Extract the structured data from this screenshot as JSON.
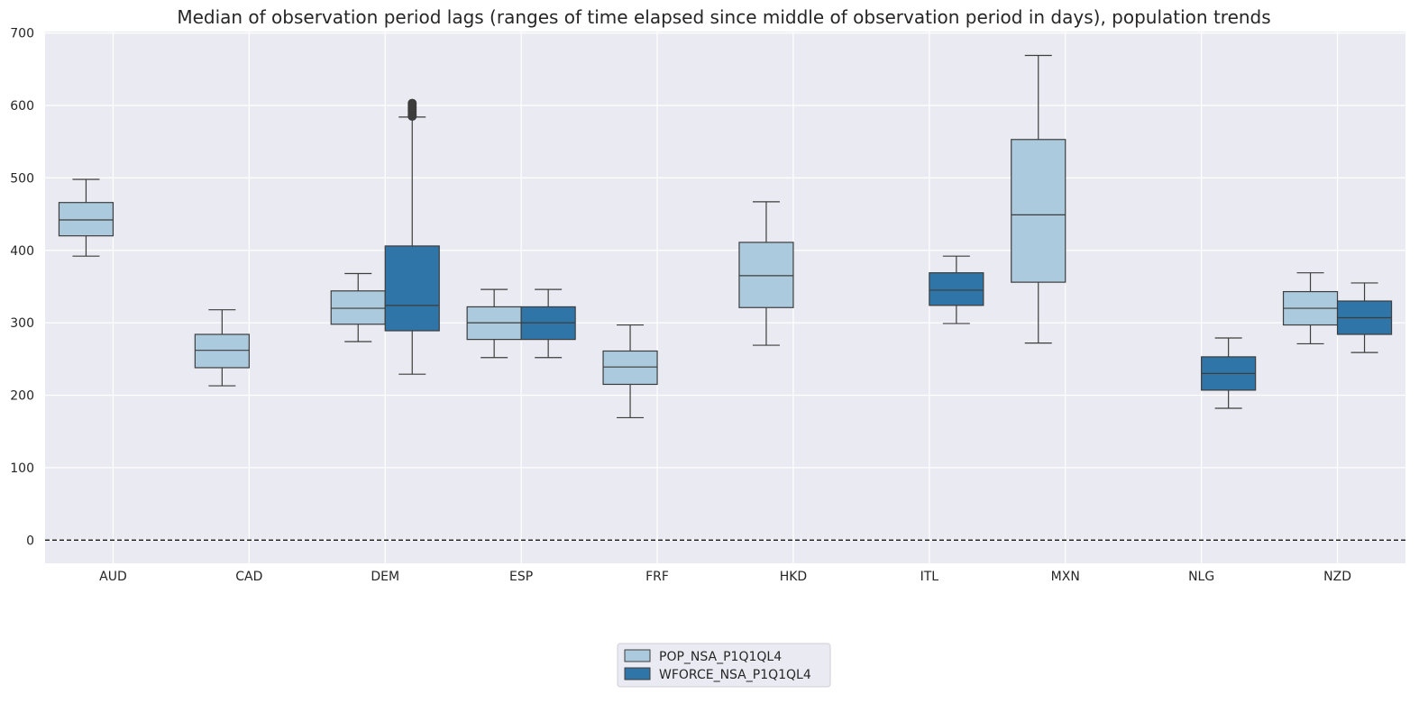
{
  "chart_data": {
    "type": "box",
    "title": "Median of observation period lags (ranges of time elapsed since middle of observation period in days), population trends",
    "xlabel": "",
    "ylabel": "",
    "ylim": [
      -32,
      702
    ],
    "yticks": [
      0,
      100,
      200,
      300,
      400,
      500,
      600,
      700
    ],
    "categories": [
      "AUD",
      "CAD",
      "DEM",
      "ESP",
      "FRF",
      "HKD",
      "ITL",
      "MXN",
      "NLG",
      "NZD"
    ],
    "grid": true,
    "reference_line": 0,
    "legend_position": "bottom-center",
    "colors": {
      "background": "#eaeaf2",
      "grid": "#ffffff",
      "box_line": "#3d3d3d",
      "reference_line": "#000000"
    },
    "series": [
      {
        "name": "POP_NSA_P1Q1QL4",
        "color": "#abcadd",
        "boxes": [
          {
            "category": "AUD",
            "whisker_low": 392,
            "q1": 420,
            "median": 442,
            "q3": 466,
            "whisker_high": 498,
            "outliers": []
          },
          {
            "category": "CAD",
            "whisker_low": 213,
            "q1": 238,
            "median": 262,
            "q3": 284,
            "whisker_high": 318,
            "outliers": []
          },
          {
            "category": "DEM",
            "whisker_low": 274,
            "q1": 298,
            "median": 320,
            "q3": 344,
            "whisker_high": 368,
            "outliers": []
          },
          {
            "category": "ESP",
            "whisker_low": 252,
            "q1": 277,
            "median": 300,
            "q3": 322,
            "whisker_high": 346,
            "outliers": []
          },
          {
            "category": "FRF",
            "whisker_low": 169,
            "q1": 215,
            "median": 239,
            "q3": 261,
            "whisker_high": 297,
            "outliers": []
          },
          {
            "category": "HKD",
            "whisker_low": 269,
            "q1": 321,
            "median": 365,
            "q3": 411,
            "whisker_high": 467,
            "outliers": []
          },
          {
            "category": "MXN",
            "whisker_low": 272,
            "q1": 356,
            "median": 449,
            "q3": 553,
            "whisker_high": 669,
            "outliers": []
          },
          {
            "category": "NZD",
            "whisker_low": 271,
            "q1": 297,
            "median": 320,
            "q3": 343,
            "whisker_high": 369,
            "outliers": []
          }
        ]
      },
      {
        "name": "WFORCE_NSA_P1Q1QL4",
        "color": "#2f75a8",
        "boxes": [
          {
            "category": "DEM",
            "whisker_low": 229,
            "q1": 289,
            "median": 324,
            "q3": 406,
            "whisker_high": 584,
            "outliers": [
              585,
              588,
              591,
              594,
              597,
              600,
              603
            ]
          },
          {
            "category": "ESP",
            "whisker_low": 252,
            "q1": 277,
            "median": 300,
            "q3": 322,
            "whisker_high": 346,
            "outliers": []
          },
          {
            "category": "ITL",
            "whisker_low": 299,
            "q1": 324,
            "median": 345,
            "q3": 369,
            "whisker_high": 392,
            "outliers": []
          },
          {
            "category": "NLG",
            "whisker_low": 182,
            "q1": 207,
            "median": 230,
            "q3": 253,
            "whisker_high": 279,
            "outliers": []
          },
          {
            "category": "NZD",
            "whisker_low": 259,
            "q1": 284,
            "median": 307,
            "q3": 330,
            "whisker_high": 355,
            "outliers": []
          }
        ]
      }
    ]
  }
}
